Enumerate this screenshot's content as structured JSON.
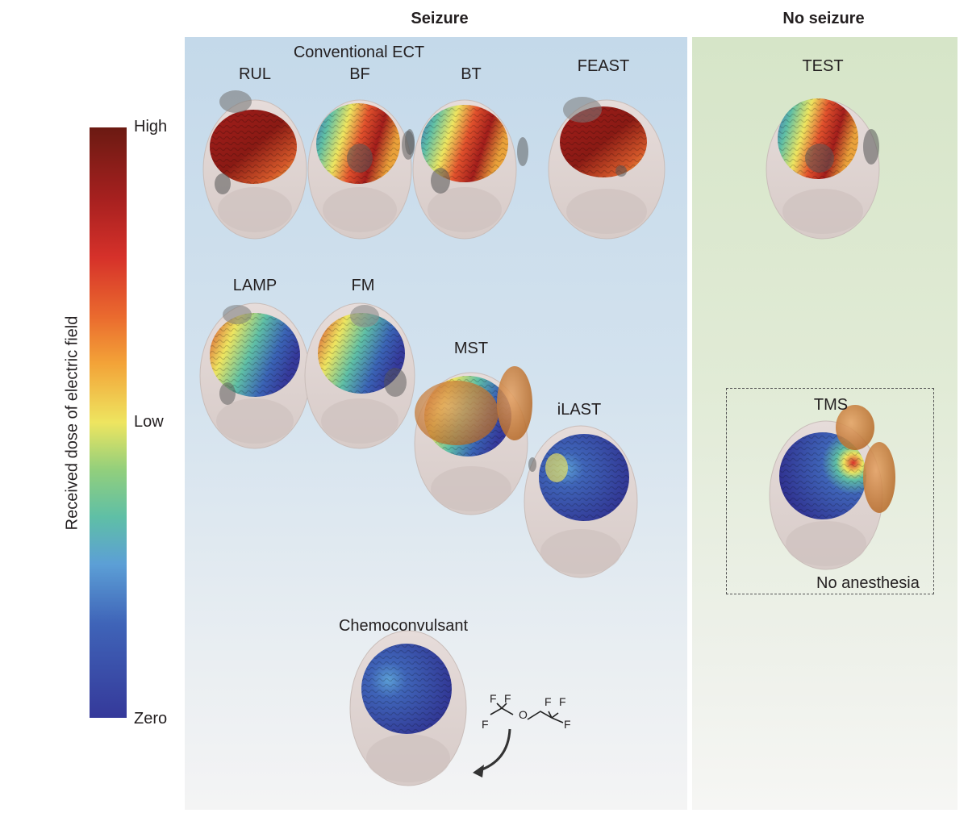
{
  "headers": {
    "seizure": "Seizure",
    "no_seizure": "No seizure"
  },
  "colorbar": {
    "title": "Received dose of electric field",
    "ticks": {
      "high": "High",
      "low": "Low",
      "zero": "Zero"
    }
  },
  "group_label": "Conventional ECT",
  "methods": {
    "rul": "RUL",
    "bf": "BF",
    "bt": "BT",
    "feast": "FEAST",
    "test": "TEST",
    "lamp": "LAMP",
    "fm": "FM",
    "mst": "MST",
    "ilast": "iLAST",
    "tms": "TMS",
    "chemo": "Chemoconvulsant"
  },
  "tms_note": "No anesthesia",
  "molecule_atoms": {
    "f": "F",
    "o": "O"
  },
  "colors": {
    "high": "#6b1a12",
    "mid": "#eee560",
    "low": "#5fbfa6",
    "zero": "#35399a",
    "coil": "#c8772a",
    "skull": "#ddd2cf"
  }
}
